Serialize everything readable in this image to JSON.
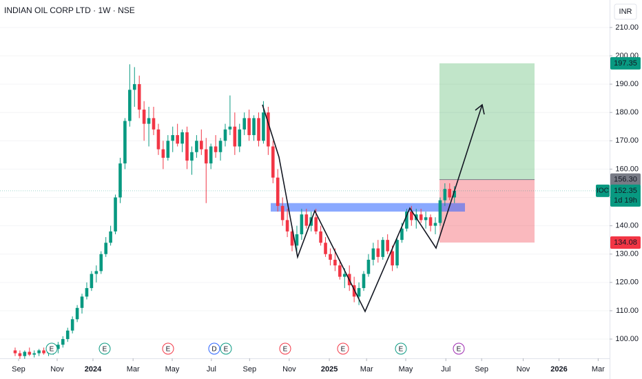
{
  "chart_data": {
    "type": "candlestick",
    "title": "INDIAN OIL CORP LTD · 1W · NSE",
    "currency": "INR",
    "symbol": "IOC",
    "countdown": "1d 19h",
    "up_color": "#089981",
    "down_color": "#f23645",
    "ylim": [
      93.2,
      219.7
    ],
    "yticks": [
      {
        "value": 100,
        "label": "100.00"
      },
      {
        "value": 110,
        "label": "110.00"
      },
      {
        "value": 120,
        "label": "120.00"
      },
      {
        "value": 130,
        "label": "130.00"
      },
      {
        "value": 140,
        "label": "140.00"
      },
      {
        "value": 150,
        "label": "150.00"
      },
      {
        "value": 160,
        "label": "160.00"
      },
      {
        "value": 170,
        "label": "170.00"
      },
      {
        "value": 180,
        "label": "180.00"
      },
      {
        "value": 190,
        "label": "190.00"
      },
      {
        "value": 200,
        "label": "200.00"
      },
      {
        "value": 210,
        "label": "210.00"
      }
    ],
    "xlim": [
      -3.17,
      124.5
    ],
    "xticks": [
      {
        "value": 0.72,
        "label": "Sep"
      },
      {
        "value": 8.8,
        "label": "Nov"
      },
      {
        "value": 16.3,
        "label": "2024"
      },
      {
        "value": 24.7,
        "label": "Mar"
      },
      {
        "value": 32.9,
        "label": "May"
      },
      {
        "value": 41.1,
        "label": "Jul"
      },
      {
        "value": 49.1,
        "label": "Sep"
      },
      {
        "value": 57.4,
        "label": "Nov"
      },
      {
        "value": 65.8,
        "label": "2025"
      },
      {
        "value": 73.6,
        "label": "Mar"
      },
      {
        "value": 81.8,
        "label": "May"
      },
      {
        "value": 90.2,
        "label": "Jul"
      },
      {
        "value": 97.7,
        "label": "Sep"
      },
      {
        "value": 106.4,
        "label": "Nov"
      },
      {
        "value": 113.9,
        "label": "2026"
      },
      {
        "value": 122.1,
        "label": "Mar"
      }
    ],
    "ohlc": [
      [
        96,
        97,
        94,
        95
      ],
      [
        95,
        96,
        93,
        94
      ],
      [
        94,
        96,
        93,
        95.5
      ],
      [
        95.5,
        97,
        94,
        94.5
      ],
      [
        94.5,
        96,
        93.5,
        95
      ],
      [
        95,
        96.5,
        94,
        96
      ],
      [
        96,
        97,
        94.5,
        95
      ],
      [
        95,
        96,
        94,
        95.5
      ],
      [
        95.5,
        97,
        94.5,
        96.5
      ],
      [
        96.5,
        99,
        95,
        98
      ],
      [
        98,
        101,
        97,
        100
      ],
      [
        100,
        104,
        99,
        103
      ],
      [
        103,
        108,
        102,
        107
      ],
      [
        107,
        112,
        106,
        111
      ],
      [
        111,
        116,
        109,
        115
      ],
      [
        115,
        120,
        114,
        118
      ],
      [
        118,
        124,
        117,
        123
      ],
      [
        123,
        126,
        120,
        124
      ],
      [
        124,
        131,
        123,
        130
      ],
      [
        130,
        136,
        129,
        134
      ],
      [
        134,
        140,
        133,
        138
      ],
      [
        138,
        151,
        137,
        150
      ],
      [
        150,
        164,
        148,
        162
      ],
      [
        162,
        178,
        160,
        177
      ],
      [
        177,
        197,
        175,
        188
      ],
      [
        188,
        196,
        182,
        190
      ],
      [
        190,
        193,
        178,
        181
      ],
      [
        181,
        184,
        170,
        176
      ],
      [
        176,
        182,
        168,
        178
      ],
      [
        178,
        182,
        172,
        174
      ],
      [
        174,
        176,
        165,
        167
      ],
      [
        167,
        170,
        160,
        164
      ],
      [
        164,
        172,
        163,
        170
      ],
      [
        170,
        175,
        166,
        172
      ],
      [
        172,
        176,
        168,
        169
      ],
      [
        169,
        174,
        166,
        173
      ],
      [
        173,
        175,
        160,
        163
      ],
      [
        163,
        168,
        158,
        166
      ],
      [
        166,
        172,
        164,
        170
      ],
      [
        170,
        174,
        165,
        167
      ],
      [
        167,
        171,
        148,
        162
      ],
      [
        162,
        169,
        160,
        168
      ],
      [
        168,
        172,
        164,
        166
      ],
      [
        166,
        171,
        163,
        170
      ],
      [
        170,
        176,
        168,
        174
      ],
      [
        174,
        186,
        172,
        175
      ],
      [
        175,
        180,
        165,
        168
      ],
      [
        168,
        176,
        166,
        174
      ],
      [
        174,
        180,
        172,
        178
      ],
      [
        178,
        181,
        170,
        172
      ],
      [
        172,
        179,
        170,
        178
      ],
      [
        178,
        180,
        168,
        170
      ],
      [
        170,
        184,
        169,
        180
      ],
      [
        180,
        182,
        165,
        168
      ],
      [
        168,
        170,
        155,
        157
      ],
      [
        157,
        160,
        145,
        147
      ],
      [
        147,
        150,
        140,
        142
      ],
      [
        142,
        146,
        136,
        138
      ],
      [
        138,
        140,
        131,
        133
      ],
      [
        133,
        140,
        130,
        137
      ],
      [
        137,
        146,
        135,
        144
      ],
      [
        144,
        146,
        139,
        140
      ],
      [
        140,
        145,
        138,
        143
      ],
      [
        143,
        146,
        137,
        138
      ],
      [
        138,
        140,
        133,
        134
      ],
      [
        134,
        136,
        129,
        130
      ],
      [
        130,
        132,
        126,
        128
      ],
      [
        128,
        132,
        124,
        126
      ],
      [
        126,
        128,
        121,
        122
      ],
      [
        122,
        125,
        118,
        123
      ],
      [
        123,
        126,
        117,
        119
      ],
      [
        119,
        122,
        113,
        115
      ],
      [
        115,
        120,
        112,
        118
      ],
      [
        118,
        124,
        117,
        123
      ],
      [
        123,
        130,
        122,
        128
      ],
      [
        128,
        134,
        126,
        132
      ],
      [
        132,
        135,
        127,
        129
      ],
      [
        129,
        136,
        128,
        135
      ],
      [
        135,
        137,
        130,
        131
      ],
      [
        131,
        133,
        124,
        126
      ],
      [
        126,
        136,
        125,
        135
      ],
      [
        135,
        141,
        134,
        139
      ],
      [
        139,
        146,
        138,
        145
      ],
      [
        145,
        147,
        140,
        142
      ],
      [
        142,
        146,
        139,
        144
      ],
      [
        144,
        146,
        141,
        142
      ],
      [
        142,
        145,
        139,
        143
      ],
      [
        143,
        144,
        138,
        140
      ],
      [
        140,
        143,
        137,
        141
      ],
      [
        141,
        150,
        140,
        149
      ],
      [
        149,
        155,
        147,
        153
      ],
      [
        153,
        155,
        149,
        150
      ],
      [
        150,
        154,
        148,
        152.35
      ]
    ],
    "last_price": {
      "value": 152.35,
      "label": "152.35"
    },
    "position": {
      "target": {
        "value": 197.35,
        "label": "197.35"
      },
      "entry": {
        "value": 156.3,
        "label": "156.30"
      },
      "stop": {
        "value": 134.08,
        "label": "134.08"
      }
    },
    "zone": [
      145,
      148
    ],
    "events": [
      "E",
      "E",
      "E",
      "D",
      "E",
      "E",
      "E",
      "E",
      "E"
    ]
  }
}
